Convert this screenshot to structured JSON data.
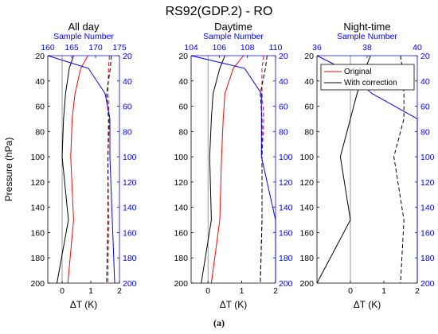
{
  "figure": {
    "title": "RS92(GDP.2) - RO",
    "caption": "(a)",
    "ylabel": "Pressure (hPa)",
    "xlabel": "ΔT (K)",
    "top_xlabel": "Sample Number",
    "legend": {
      "original": "Original",
      "with_correction": "With correction"
    }
  },
  "colors": {
    "original": "#ff0000",
    "with_correction": "#000000",
    "sample": "#0000ff",
    "zero_line": "#808080"
  },
  "chart_data": [
    {
      "type": "line",
      "title": "All day",
      "xlabel": "ΔT (K)",
      "ylabel": "Pressure (hPa)",
      "x_top_label": "Sample Number",
      "xlim": [
        -0.5,
        2
      ],
      "ylim": [
        200,
        20
      ],
      "x_top_lim": [
        160,
        175
      ],
      "x_ticks": [
        "0",
        "1",
        "2"
      ],
      "top_ticks": [
        "160",
        "165",
        "170",
        "175"
      ],
      "y_ticks": [
        "20",
        "40",
        "60",
        "80",
        "100",
        "120",
        "140",
        "160",
        "180",
        "200"
      ],
      "pressure": [
        20,
        30,
        50,
        70,
        100,
        150,
        200
      ],
      "series": [
        {
          "name": "Original",
          "mean": [
            0.9,
            0.65,
            0.45,
            0.35,
            0.3,
            0.4,
            0.2
          ],
          "sd": [
            1.65,
            1.62,
            1.6,
            1.65,
            1.6,
            1.62,
            1.6
          ]
        },
        {
          "name": "With correction",
          "mean": [
            0.4,
            0.25,
            0.12,
            0.05,
            0.0,
            0.22,
            -0.18
          ],
          "sd": [
            1.72,
            1.68,
            1.55,
            1.62,
            1.6,
            1.6,
            1.55
          ]
        }
      ],
      "samples": [
        160,
        168.5,
        172,
        173,
        173,
        173.5,
        174
      ],
      "legend": false
    },
    {
      "type": "line",
      "title": "Daytime",
      "xlabel": "ΔT (K)",
      "ylabel": "",
      "x_top_label": "Sample Number",
      "xlim": [
        -0.5,
        2
      ],
      "ylim": [
        200,
        20
      ],
      "x_top_lim": [
        104,
        110
      ],
      "x_ticks": [
        "0",
        "1",
        "2"
      ],
      "top_ticks": [
        "104",
        "106",
        "108",
        "110"
      ],
      "y_ticks": [
        "20",
        "40",
        "60",
        "80",
        "100",
        "120",
        "140",
        "160",
        "180",
        "200"
      ],
      "pressure": [
        20,
        30,
        50,
        70,
        100,
        150,
        200
      ],
      "series": [
        {
          "name": "Original",
          "mean": [
            1.05,
            0.75,
            0.5,
            0.45,
            0.4,
            0.35,
            0.1
          ],
          "sd": [
            1.65,
            1.6,
            1.6,
            1.65,
            1.6,
            1.6,
            1.55
          ]
        },
        {
          "name": "With correction",
          "mean": [
            0.5,
            0.35,
            0.15,
            0.1,
            0.05,
            0.1,
            -0.2
          ],
          "sd": [
            1.75,
            1.7,
            1.55,
            1.6,
            1.6,
            1.6,
            1.55
          ]
        }
      ],
      "samples": [
        104,
        107.8,
        109,
        109,
        109,
        110,
        110
      ],
      "legend": false
    },
    {
      "type": "line",
      "title": "Night-time",
      "xlabel": "ΔT (K)",
      "ylabel": "",
      "x_top_label": "Sample Number",
      "xlim": [
        -1,
        2
      ],
      "ylim": [
        200,
        20
      ],
      "x_top_lim": [
        36,
        40
      ],
      "x_ticks": [
        "0",
        "1",
        "2"
      ],
      "top_ticks": [
        "36",
        "38",
        "40"
      ],
      "y_ticks": [
        "20",
        "40",
        "60",
        "80",
        "100",
        "120",
        "140",
        "160",
        "180",
        "200"
      ],
      "pressure": [
        20,
        30,
        50,
        70,
        100,
        150,
        200
      ],
      "series": [
        {
          "name": "Original",
          "mean": [],
          "sd": []
        },
        {
          "name": "With correction",
          "mean": [
            0.6,
            0.45,
            0.2,
            0.0,
            -0.3,
            0.0,
            -1.0
          ],
          "sd": [
            1.5,
            1.55,
            1.6,
            1.6,
            1.3,
            1.6,
            1.5
          ]
        }
      ],
      "samples": [
        36,
        37,
        38.2,
        40,
        40,
        40,
        40
      ],
      "legend": true,
      "legend_position": "top-right"
    }
  ]
}
